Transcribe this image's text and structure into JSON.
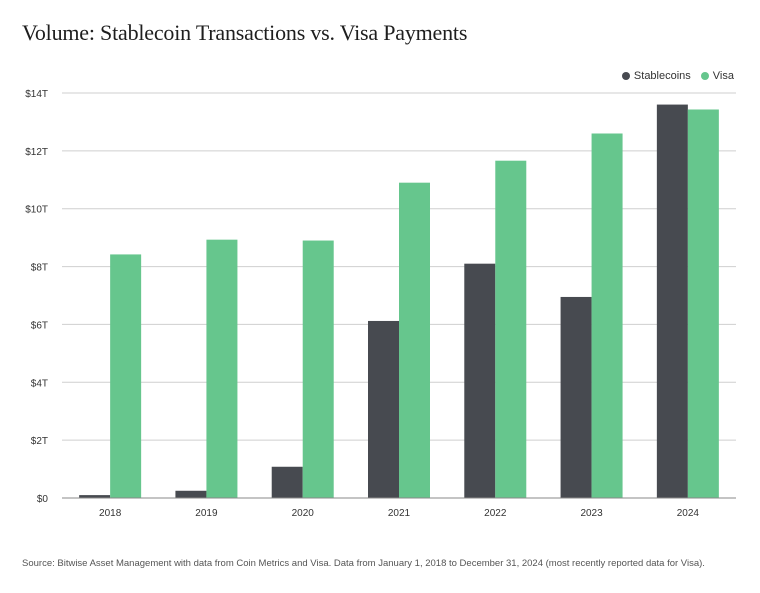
{
  "title": "Volume: Stablecoin Transactions vs. Visa Payments",
  "source": "Source: Bitwise Asset Management with data from Coin Metrics and Visa. Data from January 1, 2018 to December 31, 2024 (most recently reported data for Visa).",
  "colors": {
    "stablecoins": "#474a50",
    "visa": "#66c68d",
    "grid": "#cfcfcf",
    "axis": "#888888"
  },
  "chart_data": {
    "type": "bar",
    "title": "Volume: Stablecoin Transactions vs. Visa Payments",
    "categories": [
      "2018",
      "2019",
      "2020",
      "2021",
      "2022",
      "2023",
      "2024"
    ],
    "series": [
      {
        "name": "Stablecoins",
        "color": "#474a50",
        "values": [
          0.1,
          0.25,
          1.08,
          6.12,
          8.1,
          6.95,
          13.6
        ]
      },
      {
        "name": "Visa",
        "color": "#66c68d",
        "values": [
          8.42,
          8.93,
          8.9,
          10.9,
          11.66,
          12.6,
          13.43
        ]
      }
    ],
    "yticks": [
      0,
      2,
      4,
      6,
      8,
      10,
      12,
      14
    ],
    "ytick_labels": [
      "$0",
      "$2T",
      "$4T",
      "$6T",
      "$8T",
      "$10T",
      "$12T",
      "$14T"
    ],
    "ylim": [
      0,
      14
    ],
    "xlabel": "",
    "ylabel": "",
    "grid": true,
    "legend": "top-right"
  }
}
